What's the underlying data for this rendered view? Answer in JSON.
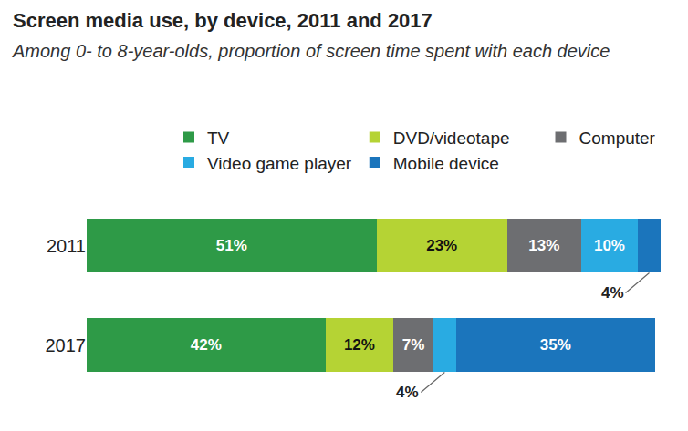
{
  "chart_data": {
    "type": "bar",
    "title": "Screen media use, by device, 2011 and 2017",
    "subtitle": "Among 0- to 8-year-olds, proportion of screen time spent with each device",
    "orientation": "horizontal",
    "stacked": true,
    "data_labels": true,
    "legend": "top right",
    "tick_labels": "y",
    "grid": false,
    "categories": [
      "2011",
      "2017"
    ],
    "xlim": [
      0,
      101
    ],
    "xticks": [],
    "series": [
      {
        "name": "TV",
        "color": "#2e9a47",
        "values": [
          51,
          42
        ],
        "value_labels": [
          "51%",
          "42%"
        ]
      },
      {
        "name": "DVD/videotape",
        "color": "#b5d334",
        "values": [
          23,
          12
        ],
        "value_labels": [
          "23%",
          "12%"
        ]
      },
      {
        "name": "Computer",
        "color": "#6d6e71",
        "values": [
          13,
          7
        ],
        "value_labels": [
          "13%",
          "7%"
        ]
      },
      {
        "name": "Video game player",
        "color": "#29abe2",
        "values": [
          10,
          4
        ],
        "value_labels": [
          "10%",
          "4%"
        ]
      },
      {
        "name": "Mobile device",
        "color": "#1b75bc",
        "values": [
          4,
          35
        ],
        "value_labels": [
          "4%",
          "35%"
        ]
      }
    ]
  }
}
